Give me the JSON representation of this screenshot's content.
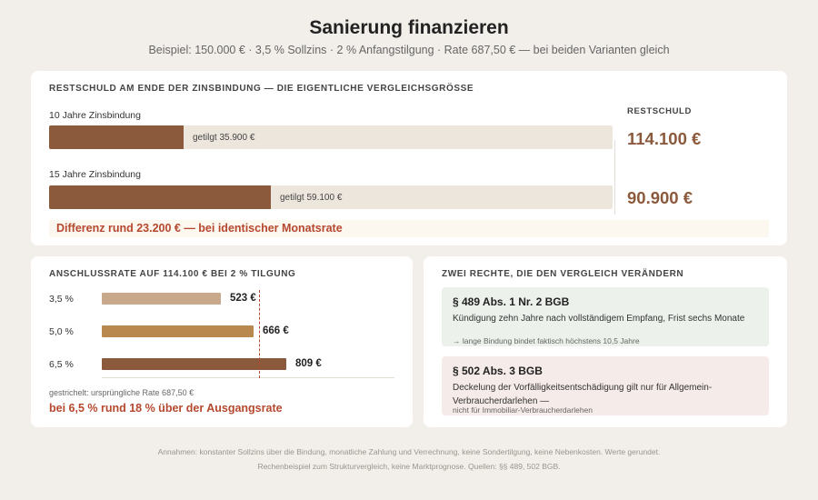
{
  "header": {
    "title": "Sanierung finanzieren",
    "subtitle": "Beispiel: 150.000 € · 3,5 % Sollzins · 2 % Anfangstilgung · Rate 687,50 € — bei beiden Varianten gleich"
  },
  "restschuld": {
    "heading": "Restschuld am Ende der Zinsbindung — die eigentliche Vergleichsgrösse",
    "col_heading": "RESTSCHULD",
    "rows": [
      {
        "label": "10 Jahre Zinsbindung",
        "paid_text": "getilgt 35.900 €",
        "value_text": "114.100 €"
      },
      {
        "label": "15 Jahre Zinsbindung",
        "paid_text": "getilgt 59.100 €",
        "value_text": "90.900 €"
      }
    ],
    "difference": "Differenz rund 23.200 € — bei identischer Monatsrate"
  },
  "anschluss": {
    "heading": "Anschlussrate auf 114.100 € bei 2 % Tilgung",
    "rows": [
      {
        "label": "3,5 %",
        "value_text": "523 €"
      },
      {
        "label": "5,0 %",
        "value_text": "666 €"
      },
      {
        "label": "6,5 %",
        "value_text": "809 €"
      }
    ],
    "note": "gestrichelt: ursprüngliche Rate 687,50 €",
    "highlight": "bei 6,5 % rund 18 % über der Ausgangsrate"
  },
  "rechte": {
    "heading": "Zwei Rechte, die den Vergleich verändern",
    "items": [
      {
        "title": "§ 489 Abs. 1 Nr. 2 BGB",
        "desc": "Kündigung zehn Jahre nach vollständigem Empfang, Frist sechs Monate",
        "note": "→ lange Bindung bindet faktisch höchstens 10,5 Jahre"
      },
      {
        "title": "§ 502 Abs. 3 BGB",
        "desc": "Deckelung der Vorfälligkeitsentschädigung gilt nur für Allgemein-Verbraucherdarlehen —",
        "note": "nicht für Immobiliar-Verbraucherdarlehen"
      }
    ]
  },
  "footer": {
    "line1": "Annahmen: konstanter Sollzins über die Bindung, monatliche Zahlung und Verrechnung, keine Sondertilgung, keine Nebenkosten. Werte gerundet.",
    "line2": "Rechenbeispiel zum Strukturvergleich, keine Marktprognose. Quellen: §§ 489, 502 BGB."
  },
  "colors": {
    "paid": "#8b5a3c",
    "track": "#ede6dd",
    "rate_3_5": "#c9a98c",
    "rate_5_0": "#b8884f",
    "rate_6_5": "#8b5a3c",
    "accent": "#b5482e"
  },
  "chart_data": [
    {
      "type": "bar",
      "orientation": "horizontal",
      "title": "Restschuld am Ende der Zinsbindung — die eigentliche Vergleichsgrösse",
      "categories": [
        "10 Jahre Zinsbindung",
        "15 Jahre Zinsbindung"
      ],
      "series": [
        {
          "name": "getilgt",
          "values": [
            35900,
            59100
          ]
        },
        {
          "name": "Restschuld",
          "values": [
            114100,
            90900
          ]
        }
      ],
      "total": 150000
    },
    {
      "type": "bar",
      "orientation": "horizontal",
      "title": "Anschlussrate auf 114.100 € bei 2 % Tilgung",
      "categories": [
        "3,5 %",
        "5,0 %",
        "6,5 %"
      ],
      "values": [
        523,
        666,
        809
      ],
      "reference_line": 687.5,
      "xlim": [
        0,
        900
      ]
    }
  ]
}
